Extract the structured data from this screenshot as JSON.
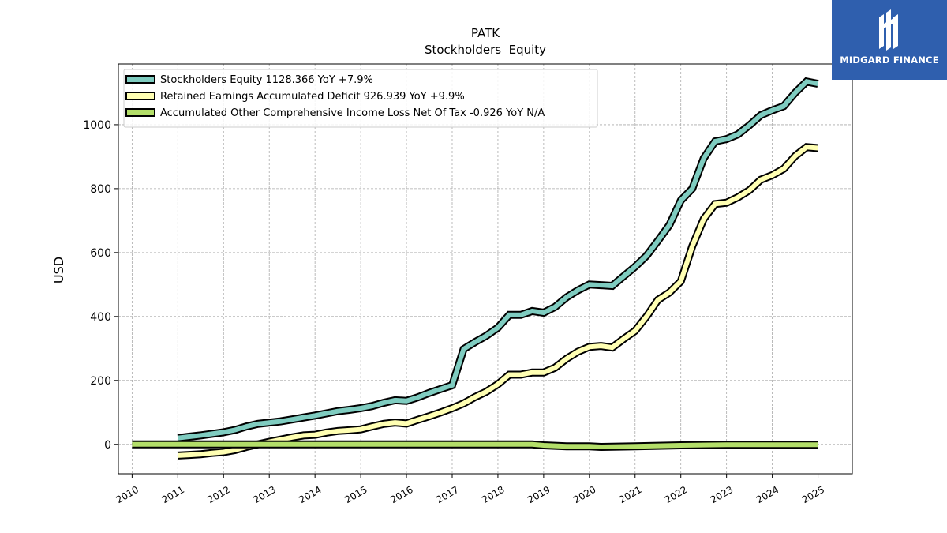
{
  "chart_data": {
    "type": "line",
    "title": "PATK",
    "subtitle": "Stockholders  Equity",
    "xlabel": "",
    "ylabel": "USD",
    "xlim": [
      2009.7,
      2025.75
    ],
    "ylim": [
      -92,
      1190
    ],
    "x_ticks": [
      2010,
      2011,
      2012,
      2013,
      2014,
      2015,
      2016,
      2017,
      2018,
      2019,
      2020,
      2021,
      2022,
      2023,
      2024,
      2025
    ],
    "x_tick_labels": [
      "2010",
      "2011",
      "2012",
      "2013",
      "2014",
      "2015",
      "2016",
      "2017",
      "2018",
      "2019",
      "2020",
      "2021",
      "2022",
      "2023",
      "2024",
      "2025"
    ],
    "y_ticks": [
      0,
      200,
      400,
      600,
      800,
      1000
    ],
    "y_tick_labels": [
      "0",
      "200",
      "400",
      "600",
      "800",
      "1000"
    ],
    "grid": true,
    "legend_position": "top-left",
    "series": [
      {
        "name": "Stockholders Equity  1128.366 YoY +7.9%",
        "color": "#7fccc0",
        "x": [
          2011.0,
          2011.25,
          2011.5,
          2011.75,
          2012.0,
          2012.25,
          2012.5,
          2012.75,
          2013.0,
          2013.25,
          2013.5,
          2013.75,
          2014.0,
          2014.25,
          2014.5,
          2014.75,
          2015.0,
          2015.25,
          2015.5,
          2015.75,
          2016.0,
          2016.25,
          2016.5,
          2016.75,
          2017.0,
          2017.25,
          2017.5,
          2017.75,
          2018.0,
          2018.25,
          2018.5,
          2018.75,
          2019.0,
          2019.25,
          2019.5,
          2019.75,
          2020.0,
          2020.25,
          2020.5,
          2020.75,
          2021.0,
          2021.25,
          2021.5,
          2021.75,
          2022.0,
          2022.25,
          2022.5,
          2022.75,
          2023.0,
          2023.25,
          2023.5,
          2023.75,
          2024.0,
          2024.25,
          2024.5,
          2024.75,
          2025.0
        ],
        "y": [
          20,
          24,
          28,
          33,
          38,
          45,
          56,
          64,
          68,
          72,
          78,
          84,
          90,
          97,
          104,
          108,
          113,
          120,
          130,
          138,
          136,
          147,
          161,
          173,
          185,
          298,
          320,
          340,
          365,
          405,
          405,
          417,
          412,
          430,
          460,
          482,
          500,
          498,
          496,
          526,
          556,
          590,
          637,
          686,
          763,
          800,
          895,
          948,
          955,
          970,
          998,
          1030,
          1045,
          1058,
          1100,
          1135,
          1128
        ]
      },
      {
        "name": "Retained Earnings Accumulated Deficit  926.939 YoY +9.9%",
        "color": "#ffffb3",
        "x": [
          2011.0,
          2011.25,
          2011.5,
          2011.75,
          2012.0,
          2012.25,
          2012.5,
          2012.75,
          2013.0,
          2013.25,
          2013.5,
          2013.75,
          2014.0,
          2014.25,
          2014.5,
          2014.75,
          2015.0,
          2015.25,
          2015.5,
          2015.75,
          2016.0,
          2016.25,
          2016.5,
          2016.75,
          2017.0,
          2017.25,
          2017.5,
          2017.75,
          2018.0,
          2018.25,
          2018.5,
          2018.75,
          2019.0,
          2019.25,
          2019.5,
          2019.75,
          2020.0,
          2020.25,
          2020.5,
          2020.75,
          2021.0,
          2021.25,
          2021.5,
          2021.75,
          2022.0,
          2022.25,
          2022.5,
          2022.75,
          2023.0,
          2023.25,
          2023.5,
          2023.75,
          2024.0,
          2024.25,
          2024.5,
          2024.75,
          2025.0
        ],
        "y": [
          -35,
          -33,
          -31,
          -27,
          -24,
          -18,
          -8,
          0,
          8,
          15,
          22,
          28,
          30,
          37,
          42,
          44,
          47,
          56,
          64,
          68,
          65,
          77,
          88,
          100,
          113,
          128,
          148,
          165,
          188,
          218,
          218,
          225,
          225,
          240,
          268,
          290,
          305,
          308,
          303,
          330,
          355,
          400,
          452,
          475,
          510,
          620,
          705,
          752,
          756,
          773,
          795,
          828,
          842,
          862,
          902,
          930,
          927
        ]
      },
      {
        "name": "Accumulated Other Comprehensive Income Loss Net Of Tax  -0.926 YoY N/A",
        "color": "#b3de69",
        "x": [
          2010.0,
          2011.0,
          2012.0,
          2013.0,
          2014.0,
          2015.0,
          2016.0,
          2017.0,
          2018.0,
          2018.75,
          2019.0,
          2019.5,
          2020.0,
          2020.25,
          2021.0,
          2022.0,
          2023.0,
          2024.0,
          2025.0
        ],
        "y": [
          0,
          0,
          0,
          0,
          0,
          0,
          0,
          0,
          0,
          0,
          -3,
          -6,
          -6,
          -8,
          -6,
          -3,
          -1,
          -1,
          -1
        ]
      }
    ]
  },
  "logo": {
    "text": "MIDGARD FINANCE"
  }
}
